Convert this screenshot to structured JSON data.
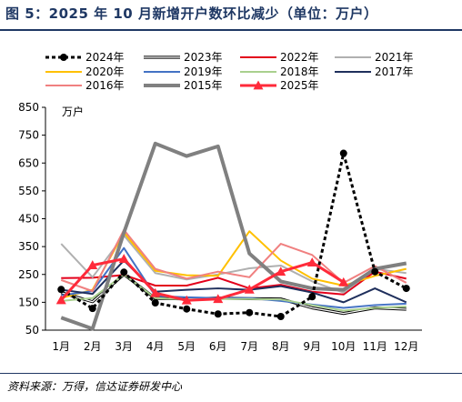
{
  "header": {
    "title": "图 5：2025 年 10 月新增开户数环比减少（单位：万户）"
  },
  "footer": {
    "source": "资料来源：万得，信达证券研发中心"
  },
  "chart_data": {
    "type": "line",
    "title": "图 5：2025 年 10 月新增开户数环比减少（单位：万户）",
    "ylabel": "万户",
    "xlabel": "",
    "ylim": [
      50,
      850
    ],
    "yticks": [
      50,
      150,
      250,
      350,
      450,
      550,
      650,
      750,
      850
    ],
    "categories": [
      "1月",
      "2月",
      "3月",
      "4月",
      "5月",
      "6月",
      "7月",
      "8月",
      "9月",
      "10月",
      "11月",
      "12月"
    ],
    "legend_position": "top",
    "grid": false,
    "series": [
      {
        "name": "2024年",
        "color": "#000000",
        "width": 3,
        "dash": "4 3",
        "marker": "circle",
        "values": [
          196,
          128,
          258,
          148,
          126,
          108,
          113,
          99,
          170,
          685,
          260,
          200
        ]
      },
      {
        "name": "2023年",
        "color": "#000000",
        "width": 1,
        "double": true,
        "marker": "",
        "values": [
          185,
          152,
          250,
          164,
          162,
          165,
          163,
          162,
          130,
          110,
          130,
          125
        ]
      },
      {
        "name": "2022年",
        "color": "#e3001b",
        "width": 2,
        "marker": "",
        "values": [
          237,
          238,
          248,
          210,
          210,
          238,
          200,
          213,
          188,
          178,
          260,
          235
        ]
      },
      {
        "name": "2021年",
        "color": "#b0b0b0",
        "width": 2,
        "marker": "",
        "values": [
          360,
          240,
          390,
          255,
          232,
          250,
          272,
          282,
          225,
          185,
          270,
          255
        ]
      },
      {
        "name": "2020年",
        "color": "#ffc000",
        "width": 2,
        "marker": "",
        "values": [
          165,
          195,
          400,
          263,
          247,
          245,
          405,
          300,
          235,
          210,
          245,
          270
        ]
      },
      {
        "name": "2019年",
        "color": "#4472c4",
        "width": 2,
        "marker": "",
        "values": [
          175,
          190,
          345,
          173,
          168,
          165,
          165,
          155,
          142,
          130,
          140,
          145
        ]
      },
      {
        "name": "2018年",
        "color": "#a9d08e",
        "width": 2,
        "marker": "",
        "values": [
          155,
          165,
          250,
          165,
          160,
          162,
          162,
          160,
          140,
          120,
          130,
          135
        ]
      },
      {
        "name": "2017年",
        "color": "#1f2f5c",
        "width": 2,
        "marker": "",
        "values": [
          195,
          180,
          300,
          188,
          195,
          200,
          195,
          208,
          185,
          150,
          200,
          150
        ]
      },
      {
        "name": "2016年",
        "color": "#f08080",
        "width": 2,
        "marker": "",
        "values": [
          230,
          190,
          410,
          270,
          235,
          260,
          240,
          360,
          320,
          220,
          280,
          220
        ]
      },
      {
        "name": "2015年",
        "color": "#808080",
        "width": 4,
        "marker": "",
        "values": [
          95,
          55,
          400,
          720,
          675,
          710,
          325,
          225,
          200,
          195,
          270,
          290
        ]
      },
      {
        "name": "2025年",
        "color": "#ff2a3a",
        "width": 3,
        "marker": "triangle",
        "values": [
          158,
          283,
          306,
          183,
          157,
          162,
          196,
          260,
          293,
          222,
          null,
          null
        ]
      }
    ]
  }
}
